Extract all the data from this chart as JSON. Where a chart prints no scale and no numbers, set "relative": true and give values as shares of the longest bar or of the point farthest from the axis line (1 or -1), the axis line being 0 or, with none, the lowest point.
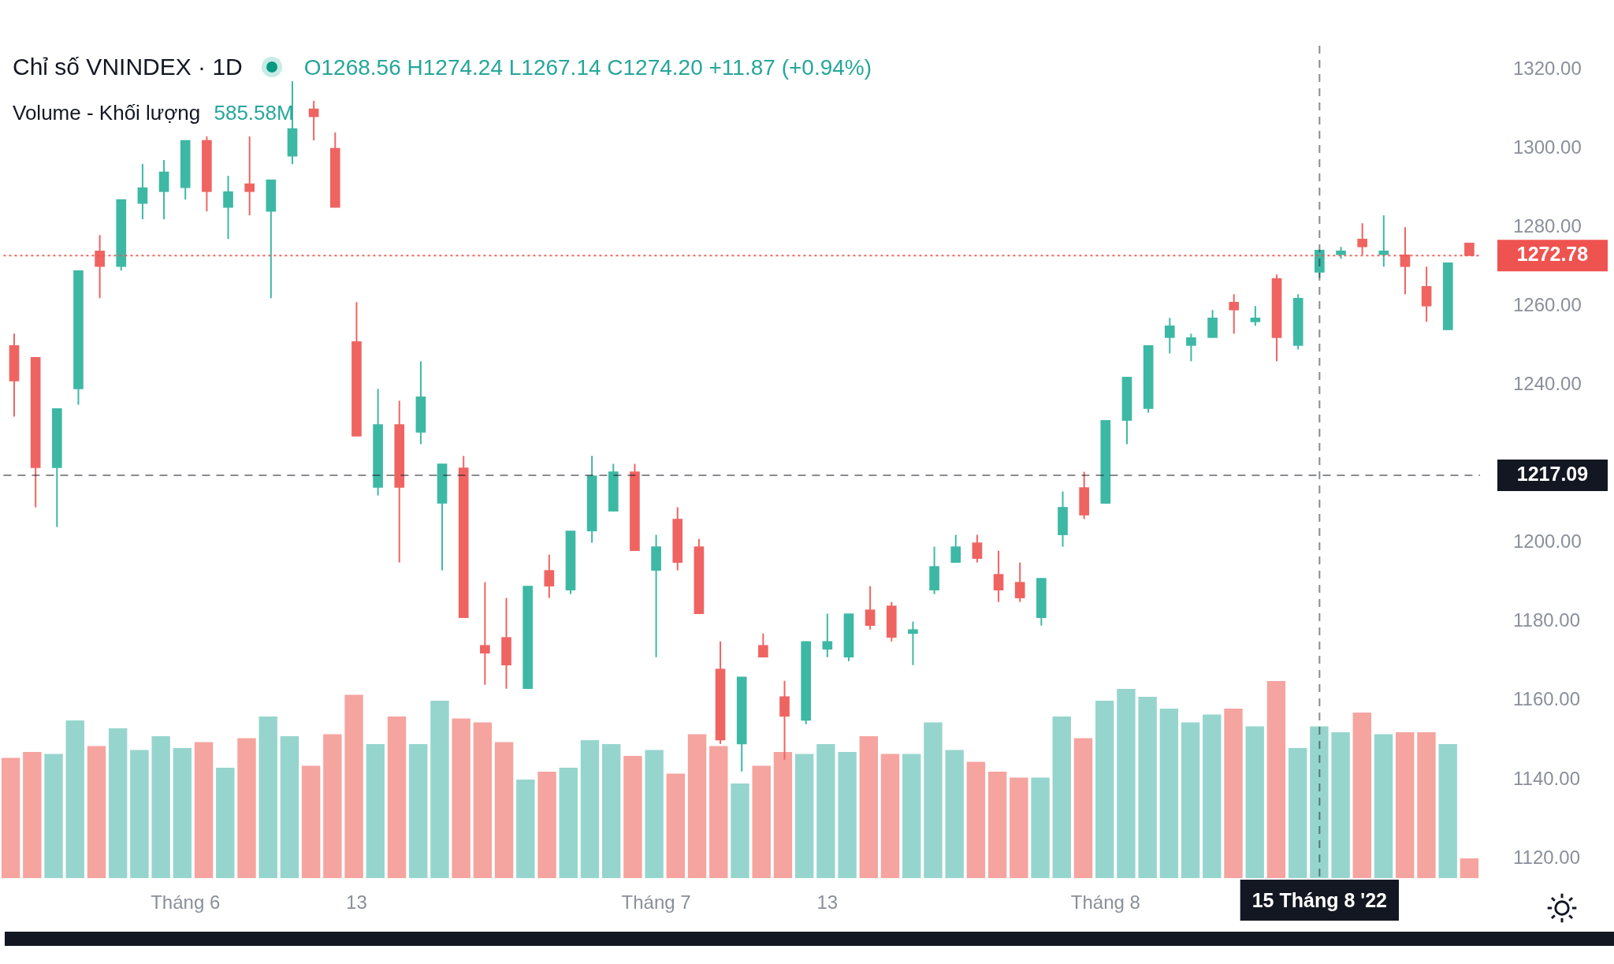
{
  "chart_data": [
    {
      "type": "candlestick",
      "title": "Chỉ số VNINDEX · 1D",
      "subtitle": "O1268.56 H1274.24 L1267.14 C1274.20 +11.87 (+0.94%)",
      "categories": [
        null,
        null,
        null,
        null,
        null,
        null,
        null,
        null,
        "Tháng 6",
        null,
        null,
        null,
        null,
        null,
        null,
        null,
        "13",
        null,
        null,
        null,
        null,
        null,
        null,
        null,
        null,
        null,
        null,
        null,
        null,
        null,
        "Tháng 7",
        null,
        null,
        null,
        null,
        null,
        null,
        null,
        "13",
        null,
        null,
        null,
        null,
        null,
        null,
        null,
        null,
        null,
        null,
        null,
        null,
        "Tháng 8",
        null,
        null,
        null,
        null,
        null,
        null,
        null,
        null,
        null,
        "15 Tháng 8 '22",
        null,
        null,
        null,
        null,
        null,
        null,
        null
      ],
      "ohlc": [
        [
          1250,
          1253,
          1232,
          1241
        ],
        [
          1247,
          1247,
          1209,
          1219
        ],
        [
          1219,
          1234,
          1204,
          1234
        ],
        [
          1239,
          1269,
          1235,
          1269
        ],
        [
          1274,
          1278,
          1262,
          1270
        ],
        [
          1270,
          1287,
          1269,
          1287
        ],
        [
          1286,
          1296,
          1282,
          1290
        ],
        [
          1289,
          1297,
          1282,
          1294
        ],
        [
          1290,
          1302,
          1287,
          1302
        ],
        [
          1302,
          1303,
          1284,
          1289
        ],
        [
          1285,
          1293,
          1277,
          1289
        ],
        [
          1291,
          1303,
          1283,
          1289
        ],
        [
          1284,
          1292,
          1262,
          1292
        ],
        [
          1298,
          1317,
          1296,
          1305
        ],
        [
          1310,
          1312,
          1302,
          1308
        ],
        [
          1300,
          1304,
          1285,
          1285
        ],
        [
          1251,
          1261,
          1227,
          1227
        ],
        [
          1214,
          1239,
          1212,
          1230
        ],
        [
          1230,
          1236,
          1195,
          1214
        ],
        [
          1228,
          1246,
          1225,
          1237
        ],
        [
          1210,
          1220,
          1193,
          1220
        ],
        [
          1219,
          1222,
          1181,
          1181
        ],
        [
          1174,
          1190,
          1164,
          1172
        ],
        [
          1176,
          1186,
          1163,
          1169
        ],
        [
          1163,
          1189,
          1163,
          1189
        ],
        [
          1193,
          1197,
          1186,
          1189
        ],
        [
          1188,
          1203,
          1187,
          1203
        ],
        [
          1203,
          1222,
          1200,
          1217
        ],
        [
          1208,
          1220,
          1208,
          1218
        ],
        [
          1218,
          1220,
          1198,
          1198
        ],
        [
          1193,
          1202,
          1171,
          1199
        ],
        [
          1206,
          1209,
          1193,
          1195
        ],
        [
          1199,
          1201,
          1182,
          1182
        ],
        [
          1168,
          1175,
          1149,
          1150
        ],
        [
          1149,
          1166,
          1142,
          1166
        ],
        [
          1174,
          1177,
          1171,
          1171
        ],
        [
          1161,
          1165,
          1145,
          1156
        ],
        [
          1155,
          1175,
          1154,
          1175
        ],
        [
          1173,
          1182,
          1171,
          1175
        ],
        [
          1171,
          1182,
          1170,
          1182
        ],
        [
          1183,
          1189,
          1178,
          1179
        ],
        [
          1184,
          1185,
          1175,
          1176
        ],
        [
          1177,
          1180,
          1169,
          1178
        ],
        [
          1188,
          1199,
          1187,
          1194
        ],
        [
          1195,
          1202,
          1195,
          1199
        ],
        [
          1200,
          1202,
          1195,
          1196
        ],
        [
          1192,
          1198,
          1185,
          1188
        ],
        [
          1190,
          1195,
          1185,
          1186
        ],
        [
          1181,
          1191,
          1179,
          1191
        ],
        [
          1202,
          1213,
          1199,
          1209
        ],
        [
          1214,
          1218,
          1206,
          1207
        ],
        [
          1210,
          1231,
          1210,
          1231
        ],
        [
          1231,
          1242,
          1225,
          1242
        ],
        [
          1234,
          1250,
          1233,
          1250
        ],
        [
          1252,
          1257,
          1248,
          1255
        ],
        [
          1250,
          1253,
          1246,
          1252
        ],
        [
          1252,
          1259,
          1252,
          1257
        ],
        [
          1261,
          1263,
          1253,
          1259
        ],
        [
          1256,
          1260,
          1255,
          1257
        ],
        [
          1267,
          1268,
          1246,
          1252
        ],
        [
          1250,
          1263,
          1249,
          1262
        ],
        [
          1268.56,
          1274.24,
          1267.14,
          1274.2
        ],
        [
          1273,
          1275,
          1272,
          1274
        ],
        [
          1277,
          1281,
          1273,
          1275
        ],
        [
          1273,
          1283,
          1270,
          1274
        ],
        [
          1273,
          1280,
          1263,
          1270
        ],
        [
          1265,
          1270,
          1256,
          1260
        ],
        [
          1254,
          1271,
          1254,
          1271
        ],
        [
          1276,
          1276,
          1272.78,
          1272.78
        ]
      ],
      "colors": [
        "#ef6461",
        "#ef6461",
        "#3db8a5",
        "#3db8a5",
        "#ef6461",
        "#3db8a5",
        "#3db8a5",
        "#3db8a5",
        "#3db8a5",
        "#ef6461",
        "#3db8a5",
        "#ef6461",
        "#3db8a5",
        "#3db8a5",
        "#ef6461",
        "#ef6461",
        "#ef6461",
        "#3db8a5",
        "#ef6461",
        "#3db8a5",
        "#3db8a5",
        "#ef6461",
        "#ef6461",
        "#ef6461",
        "#3db8a5",
        "#ef6461",
        "#3db8a5",
        "#3db8a5",
        "#3db8a5",
        "#ef6461",
        "#3db8a5",
        "#ef6461",
        "#ef6461",
        "#ef6461",
        "#3db8a5",
        "#ef6461",
        "#ef6461",
        "#3db8a5",
        "#3db8a5",
        "#3db8a5",
        "#ef6461",
        "#ef6461",
        "#3db8a5",
        "#3db8a5",
        "#3db8a5",
        "#ef6461",
        "#ef6461",
        "#ef6461",
        "#3db8a5",
        "#3db8a5",
        "#ef6461",
        "#3db8a5",
        "#3db8a5",
        "#3db8a5",
        "#3db8a5",
        "#3db8a5",
        "#3db8a5",
        "#ef6461",
        "#3db8a5",
        "#ef6461",
        "#3db8a5",
        "#3db8a5",
        "#3db8a5",
        "#ef6461",
        "#3db8a5",
        "#ef6461",
        "#ef6461",
        "#3db8a5",
        "#ef6461"
      ],
      "ylim": [
        1115,
        1326
      ],
      "yticks": [
        {
          "value": 1120,
          "label": "1120.00"
        },
        {
          "value": 1140,
          "label": "1140.00"
        },
        {
          "value": 1160,
          "label": "1160.00"
        },
        {
          "value": 1180,
          "label": "1180.00"
        },
        {
          "value": 1200,
          "label": "1200.00"
        },
        {
          "value": 1240,
          "label": "1240.00"
        },
        {
          "value": 1260,
          "label": "1260.00"
        },
        {
          "value": 1280,
          "label": "1280.00"
        },
        {
          "value": 1300,
          "label": "1300.00"
        },
        {
          "value": 1320,
          "label": "1320.00"
        }
      ],
      "ref_lines": [
        {
          "axis": "y",
          "value": 1272.78,
          "label": "1272.78",
          "color": "#ef5350",
          "line_style": "dotted"
        },
        {
          "axis": "y",
          "value": 1217.09,
          "label": "1217.09",
          "color": "#131722",
          "line_style": "dashed"
        },
        {
          "axis": "x",
          "value": "15 Tháng 8 '22",
          "color": "#131722",
          "line_style": "dashed"
        }
      ]
    },
    {
      "type": "bar",
      "title": "Volume - Khối lượng",
      "annotations": [
        "585.58M"
      ],
      "relative": true,
      "tick_labels": false,
      "categories": [
        null,
        null,
        null,
        null,
        null,
        null,
        null,
        null,
        "Tháng 6",
        null,
        null,
        null,
        null,
        null,
        null,
        null,
        "13",
        null,
        null,
        null,
        null,
        null,
        null,
        null,
        null,
        null,
        null,
        null,
        null,
        null,
        "Tháng 7",
        null,
        null,
        null,
        null,
        null,
        null,
        null,
        "13",
        null,
        null,
        null,
        null,
        null,
        null,
        null,
        null,
        null,
        null,
        null,
        null,
        "Tháng 8",
        null,
        null,
        null,
        null,
        null,
        null,
        null,
        null,
        null,
        "15 Tháng 8 '22",
        null,
        null,
        null,
        null,
        null,
        null,
        null
      ],
      "values": [
        0.61,
        0.64,
        0.63,
        0.8,
        0.67,
        0.76,
        0.65,
        0.72,
        0.66,
        0.69,
        0.56,
        0.71,
        0.82,
        0.72,
        0.57,
        0.73,
        0.93,
        0.68,
        0.82,
        0.68,
        0.9,
        0.81,
        0.79,
        0.69,
        0.5,
        0.54,
        0.56,
        0.7,
        0.68,
        0.62,
        0.65,
        0.53,
        0.73,
        0.67,
        0.48,
        0.57,
        0.64,
        0.63,
        0.68,
        0.64,
        0.72,
        0.63,
        0.63,
        0.79,
        0.65,
        0.59,
        0.54,
        0.51,
        0.51,
        0.82,
        0.71,
        0.9,
        0.96,
        0.92,
        0.86,
        0.79,
        0.83,
        0.86,
        0.77,
        1,
        0.66,
        0.77,
        0.74,
        0.84,
        0.73,
        0.74,
        0.74,
        0.68,
        0.1
      ],
      "colors": [
        "#f5a49f",
        "#f5a49f",
        "#96d5cd",
        "#96d5cd",
        "#f5a49f",
        "#96d5cd",
        "#96d5cd",
        "#96d5cd",
        "#96d5cd",
        "#f5a49f",
        "#96d5cd",
        "#f5a49f",
        "#96d5cd",
        "#96d5cd",
        "#f5a49f",
        "#f5a49f",
        "#f5a49f",
        "#96d5cd",
        "#f5a49f",
        "#96d5cd",
        "#96d5cd",
        "#f5a49f",
        "#f5a49f",
        "#f5a49f",
        "#96d5cd",
        "#f5a49f",
        "#96d5cd",
        "#96d5cd",
        "#96d5cd",
        "#f5a49f",
        "#96d5cd",
        "#f5a49f",
        "#f5a49f",
        "#f5a49f",
        "#96d5cd",
        "#f5a49f",
        "#f5a49f",
        "#96d5cd",
        "#96d5cd",
        "#96d5cd",
        "#f5a49f",
        "#f5a49f",
        "#96d5cd",
        "#96d5cd",
        "#96d5cd",
        "#f5a49f",
        "#f5a49f",
        "#f5a49f",
        "#96d5cd",
        "#96d5cd",
        "#f5a49f",
        "#96d5cd",
        "#96d5cd",
        "#96d5cd",
        "#96d5cd",
        "#96d5cd",
        "#96d5cd",
        "#f5a49f",
        "#96d5cd",
        "#f5a49f",
        "#96d5cd",
        "#96d5cd",
        "#96d5cd",
        "#f5a49f",
        "#96d5cd",
        "#f5a49f",
        "#f5a49f",
        "#96d5cd",
        "#f5a49f"
      ]
    }
  ]
}
